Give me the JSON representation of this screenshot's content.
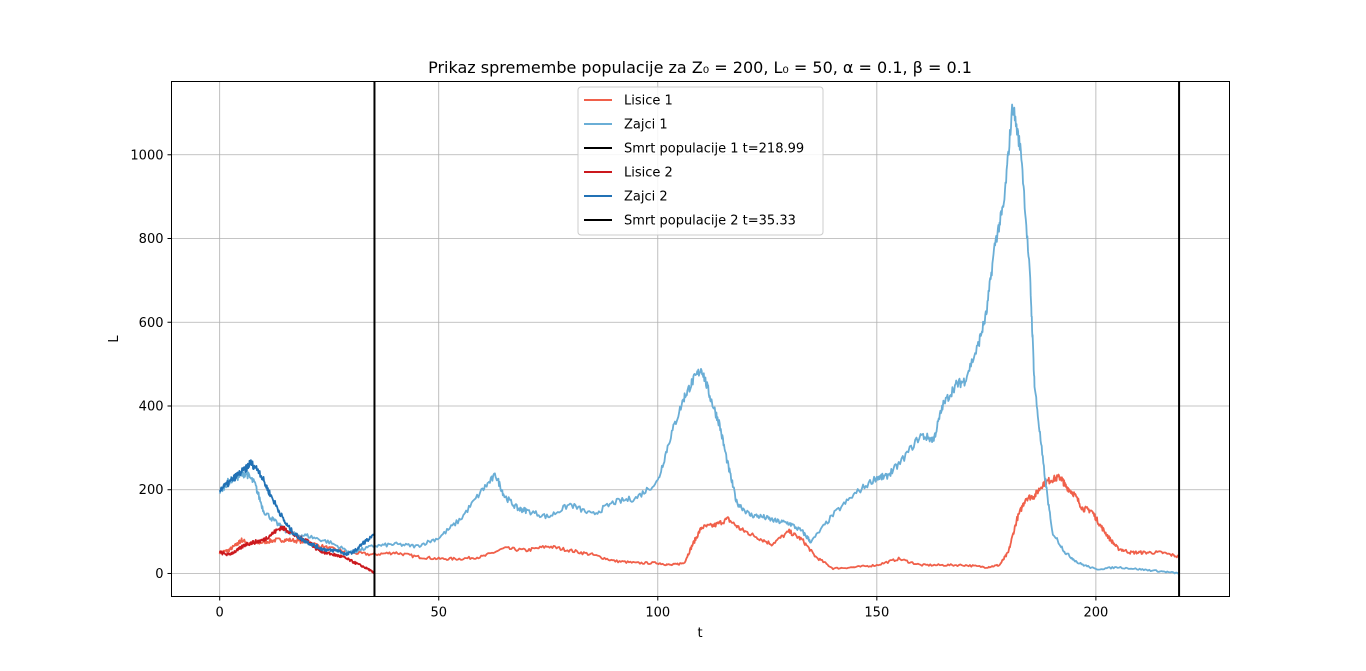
{
  "chart_data": {
    "type": "line",
    "title": "Prikaz spremembe populacije za Z₀ = 200, L₀ = 50, α = 0.1, β = 0.1",
    "xlabel": "t",
    "ylabel": "L",
    "xlim": [
      -11,
      230.5
    ],
    "ylim": [
      -55,
      1175
    ],
    "xticks": [
      0,
      50,
      100,
      150,
      200
    ],
    "yticks": [
      0,
      200,
      400,
      600,
      800,
      1000
    ],
    "grid": true,
    "legend_position": "top-center",
    "series": [
      {
        "name": "Lisice 1",
        "color": "#f0604a",
        "kind": "line",
        "x": [
          0,
          2,
          4,
          5,
          7,
          10,
          13,
          16,
          20,
          25,
          30,
          35,
          40,
          45,
          50,
          55,
          60,
          65,
          70,
          75,
          80,
          85,
          90,
          95,
          100,
          103,
          106,
          108,
          110,
          113,
          116,
          119,
          122,
          126,
          130,
          133,
          136,
          140,
          145,
          150,
          155,
          160,
          165,
          170,
          175,
          178,
          180,
          182,
          184,
          186,
          188,
          190,
          192,
          193,
          195,
          197,
          199,
          201,
          203,
          205,
          208,
          211,
          215,
          218.99
        ],
        "y": [
          50,
          55,
          70,
          80,
          70,
          75,
          80,
          80,
          75,
          60,
          50,
          45,
          50,
          40,
          35,
          35,
          40,
          60,
          55,
          65,
          55,
          45,
          30,
          25,
          25,
          20,
          25,
          70,
          110,
          115,
          130,
          105,
          90,
          70,
          100,
          80,
          40,
          12,
          15,
          20,
          35,
          20,
          20,
          20,
          15,
          20,
          50,
          130,
          180,
          185,
          215,
          225,
          230,
          210,
          190,
          155,
          150,
          115,
          85,
          60,
          50,
          50,
          50,
          40
        ]
      },
      {
        "name": "Zajci 1",
        "color": "#6aaed6",
        "kind": "line",
        "x": [
          0,
          2,
          4,
          6,
          8,
          10,
          13,
          16,
          20,
          25,
          30,
          35,
          40,
          45,
          50,
          55,
          60,
          63,
          65,
          68,
          70,
          75,
          80,
          85,
          90,
          95,
          100,
          103,
          106,
          108,
          110,
          112,
          114,
          116,
          118,
          121,
          124,
          127,
          130,
          133,
          135,
          140,
          145,
          150,
          152,
          155,
          160,
          163,
          165,
          168,
          170,
          173,
          175,
          177,
          179,
          181,
          183,
          185,
          186,
          188,
          190,
          193,
          196,
          200,
          205,
          210,
          215,
          218.99
        ],
        "y": [
          195,
          220,
          230,
          240,
          215,
          150,
          120,
          95,
          90,
          75,
          50,
          65,
          70,
          65,
          85,
          130,
          200,
          235,
          185,
          155,
          150,
          135,
          165,
          140,
          170,
          180,
          220,
          330,
          420,
          460,
          490,
          420,
          360,
          260,
          170,
          140,
          135,
          125,
          120,
          100,
          75,
          140,
          190,
          230,
          230,
          260,
          330,
          320,
          400,
          450,
          460,
          540,
          620,
          790,
          880,
          1120,
          1000,
          700,
          450,
          260,
          100,
          50,
          25,
          10,
          15,
          10,
          5,
          0
        ]
      },
      {
        "name": "Smrt populacije 1 t=218.99",
        "color": "#000000",
        "kind": "vline",
        "x": [
          218.99
        ]
      },
      {
        "name": "Lisice 2",
        "color": "#cb181d",
        "kind": "line",
        "x": [
          0,
          2,
          4,
          6,
          8,
          10,
          12,
          14,
          16,
          18,
          20,
          22,
          24,
          26,
          28,
          30,
          32,
          34,
          35.33
        ],
        "y": [
          50,
          45,
          55,
          70,
          75,
          80,
          95,
          110,
          100,
          85,
          80,
          60,
          50,
          45,
          40,
          30,
          20,
          10,
          0
        ]
      },
      {
        "name": "Zajci 2",
        "color": "#2171b5",
        "kind": "line",
        "x": [
          0,
          2,
          4,
          6,
          7,
          9,
          11,
          13,
          15,
          17,
          19,
          21,
          23,
          25,
          27,
          29,
          31,
          33,
          35.33
        ],
        "y": [
          200,
          215,
          235,
          250,
          265,
          245,
          200,
          160,
          120,
          95,
          80,
          70,
          60,
          55,
          55,
          45,
          55,
          75,
          90
        ]
      },
      {
        "name": "Smrt populacije 2 t=35.33",
        "color": "#000000",
        "kind": "vline",
        "x": [
          35.33
        ]
      }
    ]
  }
}
